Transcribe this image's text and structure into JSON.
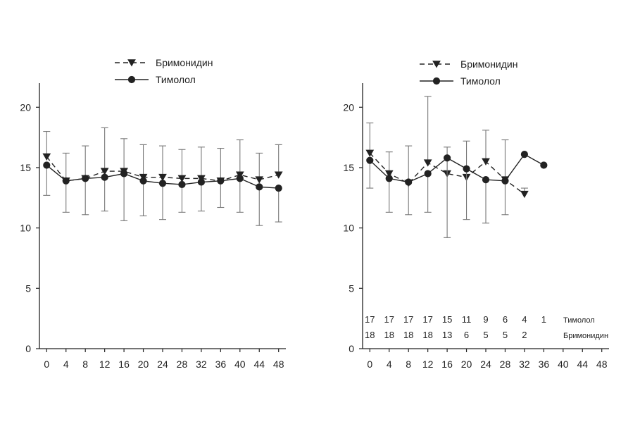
{
  "chart_data": [
    {
      "type": "line",
      "x": [
        0,
        4,
        8,
        12,
        16,
        20,
        24,
        28,
        32,
        36,
        40,
        44,
        48
      ],
      "xlim": [
        -1.5,
        49.5
      ],
      "ylim": [
        0,
        22
      ],
      "yticks": [
        0,
        5,
        10,
        15,
        20
      ],
      "grid": false,
      "legend_position": "top-center",
      "series": [
        {
          "name": "Бримонидин",
          "style": "dashed-triangle",
          "values": [
            15.9,
            13.9,
            14.1,
            14.7,
            14.7,
            14.2,
            14.2,
            14.1,
            14.1,
            13.9,
            14.4,
            14.0,
            14.4
          ],
          "err_upper": [
            18.0,
            16.2,
            16.8,
            18.3,
            17.4,
            16.9,
            16.8,
            16.5,
            16.7,
            16.6,
            17.3,
            16.2,
            16.9
          ]
        },
        {
          "name": "Тимолол",
          "style": "solid-circle",
          "values": [
            15.2,
            13.9,
            14.1,
            14.2,
            14.5,
            13.9,
            13.7,
            13.6,
            13.8,
            13.9,
            14.1,
            13.4,
            13.3
          ],
          "err_lower": [
            12.7,
            11.3,
            11.1,
            11.4,
            10.6,
            11.0,
            10.7,
            11.3,
            11.4,
            11.7,
            11.3,
            10.2,
            10.5
          ]
        }
      ]
    },
    {
      "type": "line",
      "x": [
        0,
        4,
        8,
        12,
        16,
        20,
        24,
        28,
        32,
        36,
        40,
        44,
        48
      ],
      "xlim": [
        -1.5,
        49.5
      ],
      "ylim": [
        0,
        22
      ],
      "yticks": [
        0,
        5,
        10,
        15,
        20
      ],
      "grid": false,
      "legend_position": "top-center",
      "series": [
        {
          "name": "Бримонидин",
          "style": "dashed-triangle",
          "x": [
            0,
            4,
            8,
            12,
            16,
            20,
            24,
            28,
            32
          ],
          "values": [
            16.2,
            14.5,
            13.7,
            15.4,
            14.5,
            14.2,
            15.5,
            14.0,
            12.8
          ],
          "err_upper": [
            18.7,
            16.3,
            16.8,
            20.9,
            16.7,
            17.2,
            18.1,
            17.3,
            null
          ],
          "err_lower": [
            null,
            null,
            null,
            null,
            null,
            null,
            null,
            null,
            13.3
          ]
        },
        {
          "name": "Тимолол",
          "style": "solid-circle",
          "x": [
            0,
            4,
            8,
            12,
            16,
            20,
            24,
            28,
            32,
            36
          ],
          "values": [
            15.6,
            14.1,
            13.8,
            14.5,
            15.8,
            14.9,
            14.0,
            13.9,
            16.1,
            15.2
          ],
          "err_lower": [
            13.3,
            11.3,
            11.1,
            11.3,
            9.2,
            10.7,
            10.4,
            11.1,
            null,
            null
          ]
        }
      ],
      "counts": [
        {
          "label": "Тимолол",
          "values": [
            "17",
            "17",
            "17",
            "17",
            "15",
            "11",
            "9",
            "6",
            "4",
            "1"
          ]
        },
        {
          "label": "Бримонидин",
          "values": [
            "18",
            "18",
            "18",
            "18",
            "13",
            "6",
            "5",
            "5",
            "2"
          ]
        }
      ]
    }
  ]
}
